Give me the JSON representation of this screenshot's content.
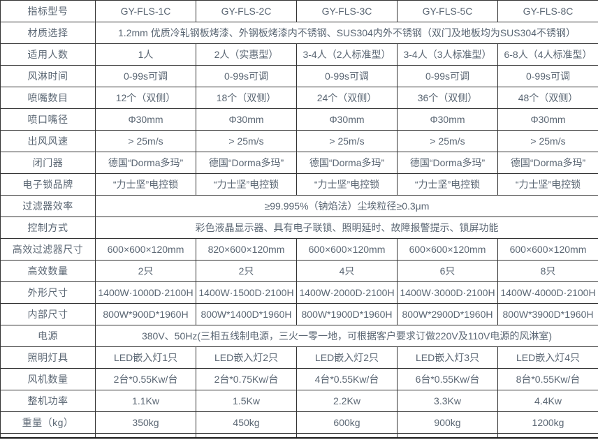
{
  "page": {
    "background": "#ffffff",
    "border_color": "#333333",
    "text_color": "#5a6673"
  },
  "table": {
    "rows": [
      {
        "label": "指标型号",
        "cells": [
          "GY-FLS-1C",
          "GY-FLS-2C",
          "GY-FLS-3C",
          "GY-FLS-5C",
          "GY-FLS-8C"
        ]
      },
      {
        "label": "材质选择",
        "span": "1.2mm 优质冷轧钢板烤漆、外钢板烤漆内不锈钢、SUS304内外不锈钢（双门及地板均为SUS304不锈钢）"
      },
      {
        "label": "适用人数",
        "cells": [
          "1人",
          "2人（实惠型）",
          "3-4人（2人标准型）",
          "3-4人（3人标准型）",
          "6-8人（4人标准型）"
        ]
      },
      {
        "label": "风淋时间",
        "cells": [
          "0-99s可调",
          "0-99s可调",
          "0-99s可调",
          "0-99s可调",
          "0-99s可调"
        ]
      },
      {
        "label": "喷嘴数目",
        "cells": [
          "12个（双侧）",
          "18个（双侧）",
          "24个（双侧）",
          "36个（双侧）",
          "48个（双侧）"
        ]
      },
      {
        "label": "喷口嘴径",
        "cells": [
          "Φ30mm",
          "Φ30mm",
          "Φ30mm",
          "Φ30mm",
          "Φ30mm"
        ]
      },
      {
        "label": "出风风速",
        "cells": [
          "> 25m/s",
          "> 25m/s",
          "> 25m/s",
          "> 25m/s",
          "> 25m/s"
        ]
      },
      {
        "label": "闭门器",
        "cells": [
          "德国“Dorma多玛”",
          "德国“Dorma多玛”",
          "德国“Dorma多玛”",
          "德国“Dorma多玛”",
          "德国“Dorma多玛”"
        ]
      },
      {
        "label": "电子锁品牌",
        "cells": [
          "“力士坚”电控锁",
          "“力士坚”电控锁",
          "“力士坚”电控锁",
          "“力士坚”电控锁",
          "“力士坚”电控锁"
        ]
      },
      {
        "label": "过滤器效率",
        "span": "≥99.995%（钠焰法）尘埃粒径≥0.3μm"
      },
      {
        "label": "控制方式",
        "span": "彩色液晶显示器、具有电子联锁、照明延时、故障报警提示、锁屏功能"
      },
      {
        "label": "高效过滤器尺寸",
        "cells": [
          "600×600×120mm",
          "820×600×120mm",
          "600×600×120mm",
          "600×600×120mm",
          "600×600×120mm"
        ]
      },
      {
        "label": "高效数量",
        "cells": [
          "2只",
          "2只",
          "4只",
          "6只",
          "8只"
        ]
      },
      {
        "label": "外形尺寸",
        "cells": [
          "1400W·1000D·2100H",
          "1400W·1500D·2100H",
          "1400W·2000D·2100H",
          "1400W·3000D·2100H",
          "1400W·4000D·2100H"
        ]
      },
      {
        "label": "内部尺寸",
        "cells": [
          "800W*900D*1960H",
          "800W*1400D*1960H",
          "800W*1900D*1960H",
          "800W*2900D*1960H",
          "800W*3900D*1960H"
        ]
      },
      {
        "label": "电源",
        "span": "380V、50Hz(三相五线制电源，三火一零一地，可根据客户要求订做220V及110V电源的风淋室)"
      },
      {
        "label": "照明灯具",
        "cells": [
          "LED嵌入灯1只",
          "LED嵌入灯2只",
          "LED嵌入灯2只",
          "LED嵌入灯3只",
          "LED嵌入灯4只"
        ]
      },
      {
        "label": "风机数量",
        "cells": [
          "2台*0.55Kw/台",
          "2台*0.75Kw/台",
          "4台*0.55Kw/台",
          "6台*0.55Kw/台",
          "8台*0.55Kw/台"
        ]
      },
      {
        "label": "整机功率",
        "cells": [
          "1.1Kw",
          "1.5Kw",
          "2.2Kw",
          "3.3Kw",
          "4.4Kw"
        ]
      },
      {
        "label": "重量（kg）",
        "cells": [
          "350kg",
          "450kg",
          "600kg",
          "900kg",
          "1200kg"
        ]
      }
    ]
  }
}
